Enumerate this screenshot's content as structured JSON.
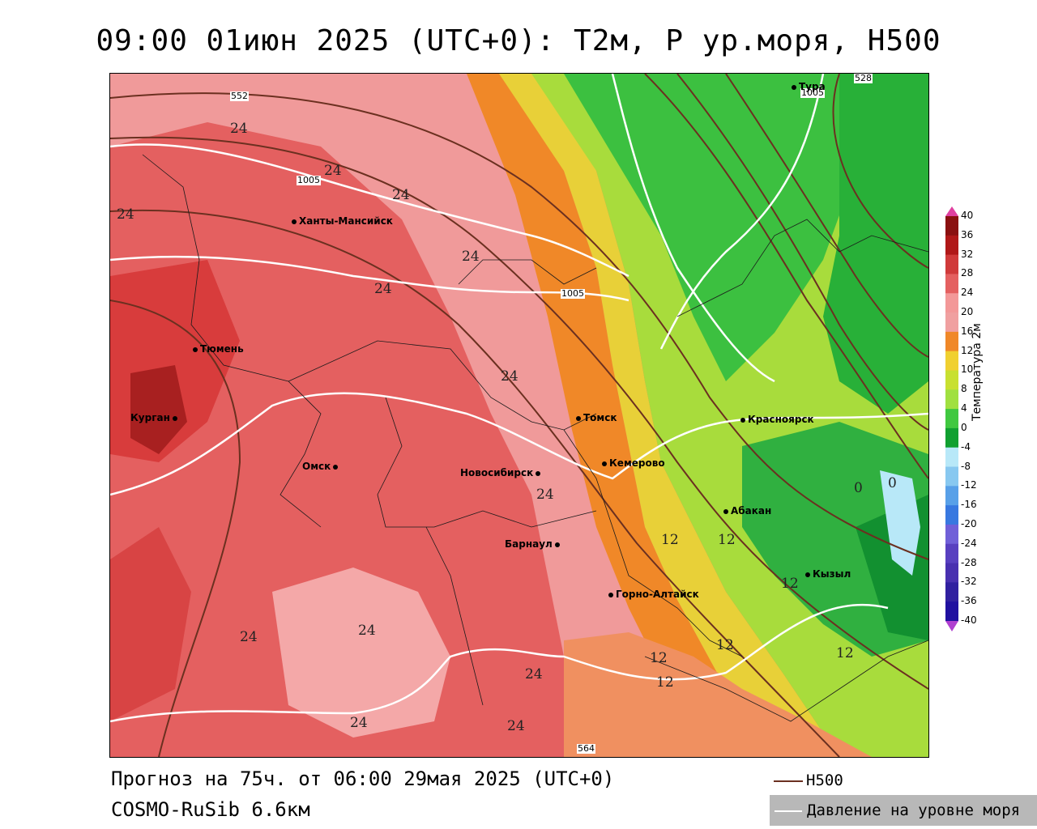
{
  "title": "09:00 01июн 2025 (UTC+0): T2м, P ур.моря, H500",
  "footer": {
    "forecast": "Прогноз на 75ч. от 06:00 29мая 2025 (UTC+0)",
    "model": "COSMO-RuSib 6.6км"
  },
  "legend": {
    "h500_label": "H500",
    "slp_label": "Давление на уровне моря",
    "h500_color": "#6b3020",
    "slp_color": "#ffffff"
  },
  "colorbar": {
    "title": "Температура 2м",
    "ticks": [
      "40",
      "36",
      "32",
      "28",
      "24",
      "20",
      "16",
      "12",
      "10",
      "8",
      "4",
      "0",
      "-4",
      "-8",
      "-12",
      "-16",
      "-20",
      "-24",
      "-28",
      "-32",
      "-36",
      "-40"
    ],
    "colors": [
      "#8a1010",
      "#b01818",
      "#d03a3a",
      "#e46060",
      "#f39898",
      "#f0a0a0",
      "#f08828",
      "#f0d030",
      "#c8e030",
      "#a0e040",
      "#40c840",
      "#10a030",
      "#b8e8f8",
      "#88c8f0",
      "#58a0e8",
      "#3878e0",
      "#7060d8",
      "#5840c0",
      "#4830b0",
      "#3020a0",
      "#2010a0",
      "#1010b0"
    ]
  },
  "cities": [
    {
      "name": "Тура"
    },
    {
      "name": "Ханты-Мансийск"
    },
    {
      "name": "Тюмень"
    },
    {
      "name": "Курган"
    },
    {
      "name": "Омск"
    },
    {
      "name": "Новосибирск"
    },
    {
      "name": "Томск"
    },
    {
      "name": "Кемерово"
    },
    {
      "name": "Красноярск"
    },
    {
      "name": "Абакан"
    },
    {
      "name": "Барнаул"
    },
    {
      "name": "Горно-Алтайск"
    },
    {
      "name": "Кызыл"
    }
  ],
  "contour_labels": {
    "t24": "24",
    "t12": "12",
    "t0": "0",
    "slp1005": "1005",
    "h552": "552",
    "h528": "528",
    "h564": "564"
  }
}
